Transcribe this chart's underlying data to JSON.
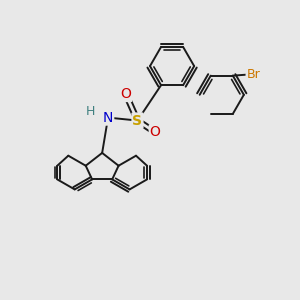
{
  "background_color": "#e8e8e8",
  "fig_size": [
    3.0,
    3.0
  ],
  "dpi": 100,
  "bond_color": "#1a1a1a",
  "bond_lw": 1.4,
  "atom_S": {
    "label": "S",
    "color": "#c8a000",
    "fontsize": 10
  },
  "atom_N": {
    "label": "N",
    "color": "#0000cc",
    "fontsize": 10
  },
  "atom_H": {
    "label": "H",
    "color": "#408080",
    "fontsize": 9
  },
  "atom_O1": {
    "label": "O",
    "color": "#cc0000",
    "fontsize": 10
  },
  "atom_O2": {
    "label": "O",
    "color": "#cc0000",
    "fontsize": 10
  },
  "atom_Br": {
    "label": "Br",
    "color": "#cc7700",
    "fontsize": 9
  }
}
